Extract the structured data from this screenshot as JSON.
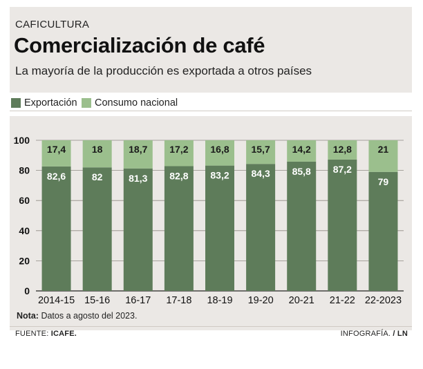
{
  "header": {
    "kicker": "CAFICULTURA",
    "title": "Comercialización de café",
    "subtitle": "La mayoría de la producción es exportada a otros países"
  },
  "legend": {
    "export_label": "Exportación",
    "domestic_label": "Consumo nacional"
  },
  "colors": {
    "export": "#5e7c5a",
    "domestic": "#9bbf8d",
    "background": "#ebe8e5"
  },
  "chart_data": {
    "type": "bar",
    "stacked": true,
    "categories": [
      "2014-15",
      "15-16",
      "16-17",
      "17-18",
      "18-19",
      "19-20",
      "20-21",
      "21-22",
      "22-2023"
    ],
    "series": [
      {
        "name": "Exportación",
        "values": [
          82.6,
          82,
          81.3,
          82.8,
          83.2,
          84.3,
          85.8,
          87.2,
          79
        ]
      },
      {
        "name": "Consumo nacional",
        "values": [
          17.4,
          18,
          18.7,
          17.2,
          16.8,
          15.7,
          14.2,
          12.8,
          21
        ]
      }
    ],
    "value_labels": {
      "export": [
        "82,6",
        "82",
        "81,3",
        "82,8",
        "83,2",
        "84,3",
        "85,8",
        "87,2",
        "79"
      ],
      "domestic": [
        "17,4",
        "18",
        "18,7",
        "17,2",
        "16,8",
        "15,7",
        "14,2",
        "12,8",
        "21"
      ]
    },
    "yticks": [
      "0",
      "20",
      "40",
      "60",
      "80",
      "100"
    ],
    "ylim": [
      0,
      100
    ],
    "grid": true,
    "legend_position": "top-left"
  },
  "note": {
    "label": "Nota:",
    "text": "Datos a agosto del 2023."
  },
  "footer": {
    "source_label": "FUENTE:",
    "source_value": "ICAFE.",
    "credit_label": "INFOGRAFÍA.",
    "credit_sep": "/",
    "credit_value": "LN"
  }
}
